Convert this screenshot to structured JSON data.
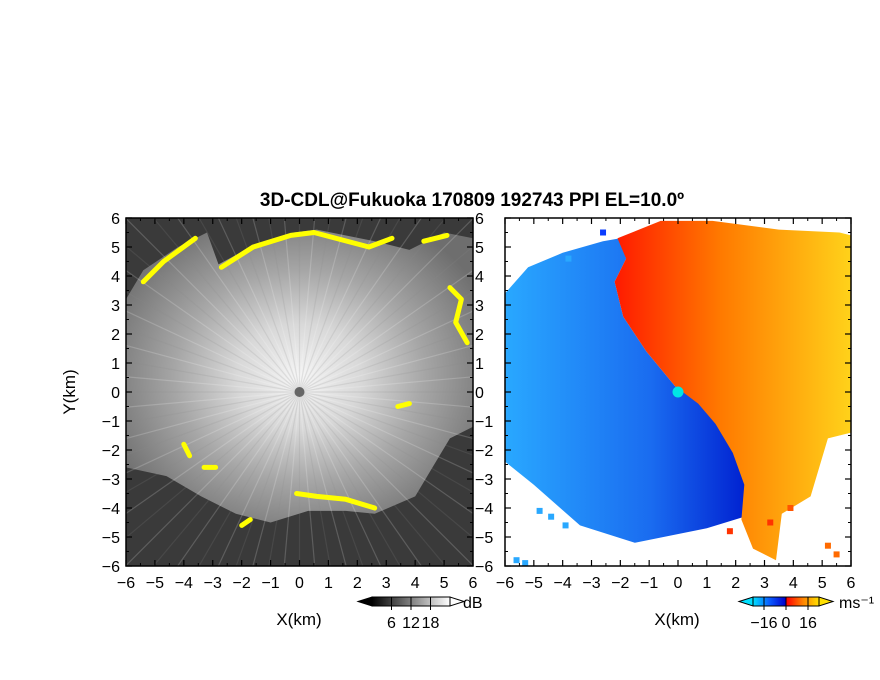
{
  "figure_title": "3D-CDL@Fukuoka 170809 192743 PPI EL=10.0º",
  "chart_data": [
    {
      "type": "heatmap",
      "panel": "left",
      "quantity": "SNR",
      "xlabel": "X(km)",
      "ylabel": "Y(km)",
      "xlim": [
        -6,
        6
      ],
      "ylim": [
        -6,
        6
      ],
      "xticks": [
        -6,
        -5,
        -4,
        -3,
        -2,
        -1,
        0,
        1,
        2,
        3,
        4,
        5,
        6
      ],
      "yticks": [
        -6,
        -5,
        -4,
        -3,
        -2,
        -1,
        0,
        1,
        2,
        3,
        4,
        5,
        6
      ],
      "xtick_labels": [
        "−6",
        "−5",
        "−4",
        "−3",
        "−2",
        "−1",
        "0",
        "1",
        "2",
        "3",
        "4",
        "5",
        "6"
      ],
      "ytick_labels": [
        "−6",
        "−5",
        "−4",
        "−3",
        "−2",
        "−1",
        "0",
        "1",
        "2",
        "3",
        "4",
        "5",
        "6"
      ],
      "colorbar": {
        "unit": "dB",
        "ticks": [
          6,
          12,
          18
        ],
        "tick_labels": [
          "6",
          "12",
          "18"
        ],
        "range": [
          0,
          24
        ],
        "colors": [
          "#000000",
          "#ffffff"
        ]
      },
      "highlight_color": "#ffff00",
      "radar_center": [
        0,
        0
      ],
      "radar_marker_color": "#666666"
    },
    {
      "type": "heatmap",
      "panel": "right",
      "quantity": "Doppler velocity",
      "xlabel": "X(km)",
      "ylabel": "",
      "xlim": [
        -6,
        6
      ],
      "ylim": [
        -6,
        6
      ],
      "xticks": [
        -6,
        -5,
        -4,
        -3,
        -2,
        -1,
        0,
        1,
        2,
        3,
        4,
        5,
        6
      ],
      "yticks": [
        -6,
        -5,
        -4,
        -3,
        -2,
        -1,
        0,
        1,
        2,
        3,
        4,
        5,
        6
      ],
      "xtick_labels": [
        "−6",
        "−5",
        "−4",
        "−3",
        "−2",
        "−1",
        "0",
        "1",
        "2",
        "3",
        "4",
        "5",
        "6"
      ],
      "ytick_labels": [
        "−6",
        "−5",
        "−4",
        "−3",
        "−2",
        "−1",
        "0",
        "1",
        "2",
        "3",
        "4",
        "5",
        "6"
      ],
      "colorbar": {
        "unit": "ms⁻¹",
        "ticks": [
          -16,
          0,
          16
        ],
        "tick_labels": [
          "−16",
          "0",
          "16"
        ],
        "range": [
          -24,
          24
        ],
        "colors": [
          "#00e0ff",
          "#0a5cff",
          "#0000cc",
          "#ff0000",
          "#ff8000",
          "#ffe000"
        ]
      },
      "radar_center": [
        0,
        0
      ],
      "radar_marker_color": "#00e5e5"
    }
  ]
}
